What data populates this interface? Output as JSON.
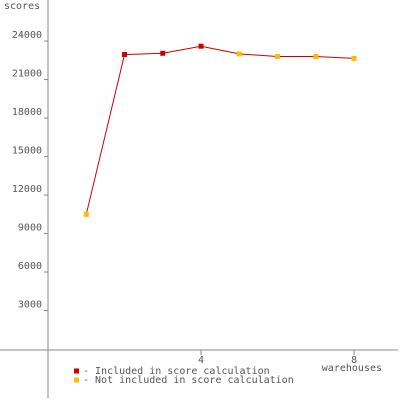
{
  "chart_data": {
    "type": "line",
    "ylabel": "scores",
    "xlabel": "warehouses",
    "x": [
      1,
      2,
      3,
      4,
      5,
      6,
      7,
      8
    ],
    "values": [
      10500,
      22950,
      23050,
      23600,
      23000,
      22800,
      22800,
      22650
    ],
    "included": [
      false,
      true,
      true,
      true,
      false,
      false,
      false,
      false
    ],
    "line_color": "#cc0000",
    "legend": [
      {
        "label": "- Included in score calculation",
        "color": "#cc0000"
      },
      {
        "label": "- Not included in score calculation",
        "color": "#ffbb00"
      }
    ],
    "xlim": [
      0,
      9.2
    ],
    "xticks": [
      4,
      8
    ],
    "ylim": [
      -3580,
      27200
    ],
    "yticks": [
      3000,
      6000,
      9000,
      12000,
      15000,
      18000,
      21000,
      24000
    ]
  }
}
